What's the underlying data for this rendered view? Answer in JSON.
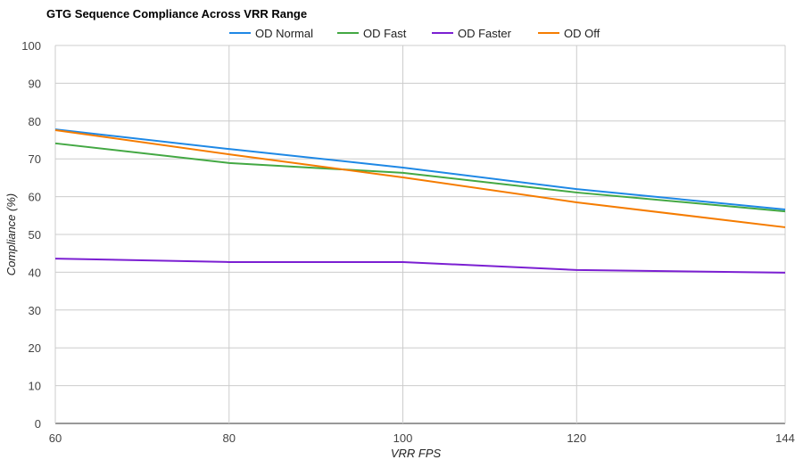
{
  "chart_data": {
    "type": "line",
    "title": "GTG Sequence Compliance Across VRR Range",
    "xlabel": "VRR FPS",
    "ylabel": "Compliance (%)",
    "x": [
      60,
      80,
      100,
      120,
      144
    ],
    "xticks": [
      60,
      80,
      100,
      120,
      144
    ],
    "yticks": [
      0,
      10,
      20,
      30,
      40,
      50,
      60,
      70,
      80,
      90,
      100
    ],
    "xlim": [
      60,
      144
    ],
    "ylim": [
      0,
      100
    ],
    "grid": true,
    "legend_position": "top-center",
    "series": [
      {
        "name": "OD Normal",
        "color": "#1e88e5",
        "values": [
          77.8,
          72.6,
          67.7,
          62.0,
          56.6
        ]
      },
      {
        "name": "OD Fast",
        "color": "#43a843",
        "values": [
          74.1,
          68.9,
          66.3,
          61.1,
          56.1
        ]
      },
      {
        "name": "OD Faster",
        "color": "#7b1fd2",
        "values": [
          43.6,
          42.7,
          42.7,
          40.6,
          39.9
        ]
      },
      {
        "name": "OD Off",
        "color": "#f57c00",
        "values": [
          77.6,
          71.2,
          65.1,
          58.5,
          51.9
        ]
      }
    ]
  }
}
